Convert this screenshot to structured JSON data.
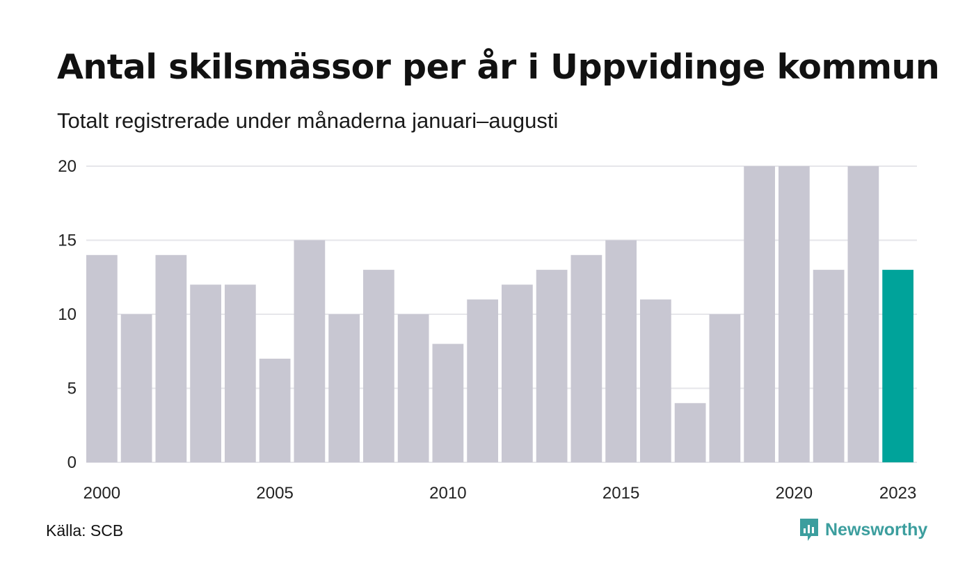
{
  "header": {
    "title": "Antal skilsmässor per år i Uppvidinge kommun",
    "subtitle": "Totalt registrerade under månaderna januari–augusti"
  },
  "footer": {
    "source": "Källa: SCB",
    "brand": "Newsworthy",
    "brand_icon": "newsworthy-logo-icon"
  },
  "colors": {
    "bar_default": "#c8c7d2",
    "bar_highlight": "#00a39a",
    "grid": "#e6e6ea",
    "brand": "#3c9e9e"
  },
  "chart_data": {
    "type": "bar",
    "categories": [
      "2000",
      "2001",
      "2002",
      "2003",
      "2004",
      "2005",
      "2006",
      "2007",
      "2008",
      "2009",
      "2010",
      "2011",
      "2012",
      "2013",
      "2014",
      "2015",
      "2016",
      "2017",
      "2018",
      "2019",
      "2020",
      "2021",
      "2022",
      "2023"
    ],
    "values": [
      14,
      10,
      14,
      12,
      12,
      7,
      15,
      10,
      13,
      10,
      8,
      11,
      12,
      13,
      14,
      15,
      11,
      4,
      10,
      20,
      20,
      13,
      20,
      13
    ],
    "highlight_category": "2023",
    "ylim": [
      0,
      20
    ],
    "yticks": [
      0,
      5,
      10,
      15,
      20
    ],
    "xtick_labels": [
      "2000",
      "2005",
      "2010",
      "2015",
      "2020",
      "2023"
    ],
    "grid": true,
    "xlabel": "",
    "ylabel": ""
  }
}
